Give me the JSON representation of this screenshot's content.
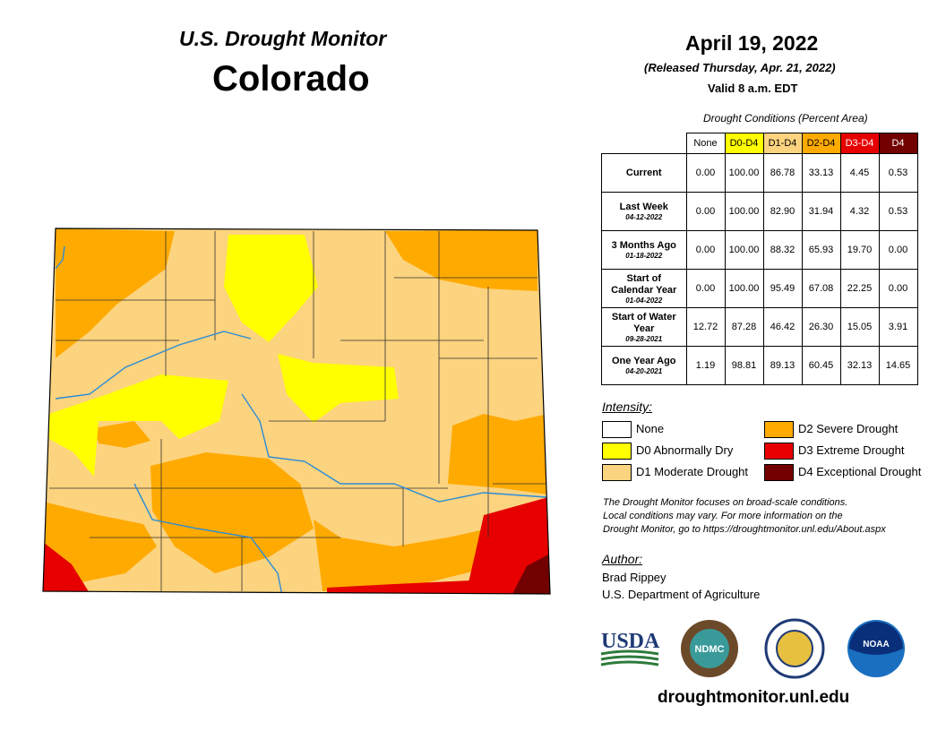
{
  "header": {
    "title": "U.S. Drought Monitor",
    "state": "Colorado"
  },
  "date": {
    "map_date": "April 19, 2022",
    "released": "(Released Thursday, Apr. 21, 2022)",
    "valid": "Valid 8 a.m. EDT"
  },
  "table": {
    "caption": "Drought Conditions (Percent Area)",
    "columns": [
      {
        "label": "None",
        "color": "#ffffff",
        "text": "#000000"
      },
      {
        "label": "D0-D4",
        "color": "#ffff00",
        "text": "#000000"
      },
      {
        "label": "D1-D4",
        "color": "#fcd37f",
        "text": "#000000"
      },
      {
        "label": "D2-D4",
        "color": "#ffaa00",
        "text": "#000000"
      },
      {
        "label": "D3-D4",
        "color": "#e60000",
        "text": "#ffffff"
      },
      {
        "label": "D4",
        "color": "#730000",
        "text": "#ffffff"
      }
    ],
    "rows": [
      {
        "label": "Current",
        "values": [
          "0.00",
          "100.00",
          "86.78",
          "33.13",
          "4.45",
          "0.53"
        ]
      },
      {
        "label": "Last Week",
        "date": "04-12-2022",
        "values": [
          "0.00",
          "100.00",
          "82.90",
          "31.94",
          "4.32",
          "0.53"
        ]
      },
      {
        "label": "3 Months Ago",
        "date": "01-18-2022",
        "values": [
          "0.00",
          "100.00",
          "88.32",
          "65.93",
          "19.70",
          "0.00"
        ]
      },
      {
        "label": "Start of Calendar Year",
        "date": "01-04-2022",
        "values": [
          "0.00",
          "100.00",
          "95.49",
          "67.08",
          "22.25",
          "0.00"
        ]
      },
      {
        "label": "Start of Water Year",
        "date": "09-28-2021",
        "values": [
          "12.72",
          "87.28",
          "46.42",
          "26.30",
          "15.05",
          "3.91"
        ]
      },
      {
        "label": "One Year Ago",
        "date": "04-20-2021",
        "values": [
          "1.19",
          "98.81",
          "89.13",
          "60.45",
          "32.13",
          "14.65"
        ]
      }
    ]
  },
  "intensity": {
    "title": "Intensity:",
    "items": [
      {
        "label": "None",
        "color": "#ffffff"
      },
      {
        "label": "D0 Abnormally Dry",
        "color": "#ffff00"
      },
      {
        "label": "D1 Moderate Drought",
        "color": "#fcd37f"
      },
      {
        "label": "D2 Severe Drought",
        "color": "#ffaa00"
      },
      {
        "label": "D3 Extreme Drought",
        "color": "#e60000"
      },
      {
        "label": "D4 Exceptional Drought",
        "color": "#730000"
      }
    ]
  },
  "note": [
    "The Drought Monitor focuses on broad-scale conditions.",
    "Local conditions may vary. For more information on the",
    "Drought Monitor, go to https://droughtmonitor.unl.edu/About.aspx"
  ],
  "author": {
    "title": "Author:",
    "name": "Brad Rippey",
    "agency": "U.S. Department of Agriculture"
  },
  "logos": [
    "USDA",
    "NDMC",
    "NOAA"
  ],
  "url": "droughtmonitor.unl.edu"
}
